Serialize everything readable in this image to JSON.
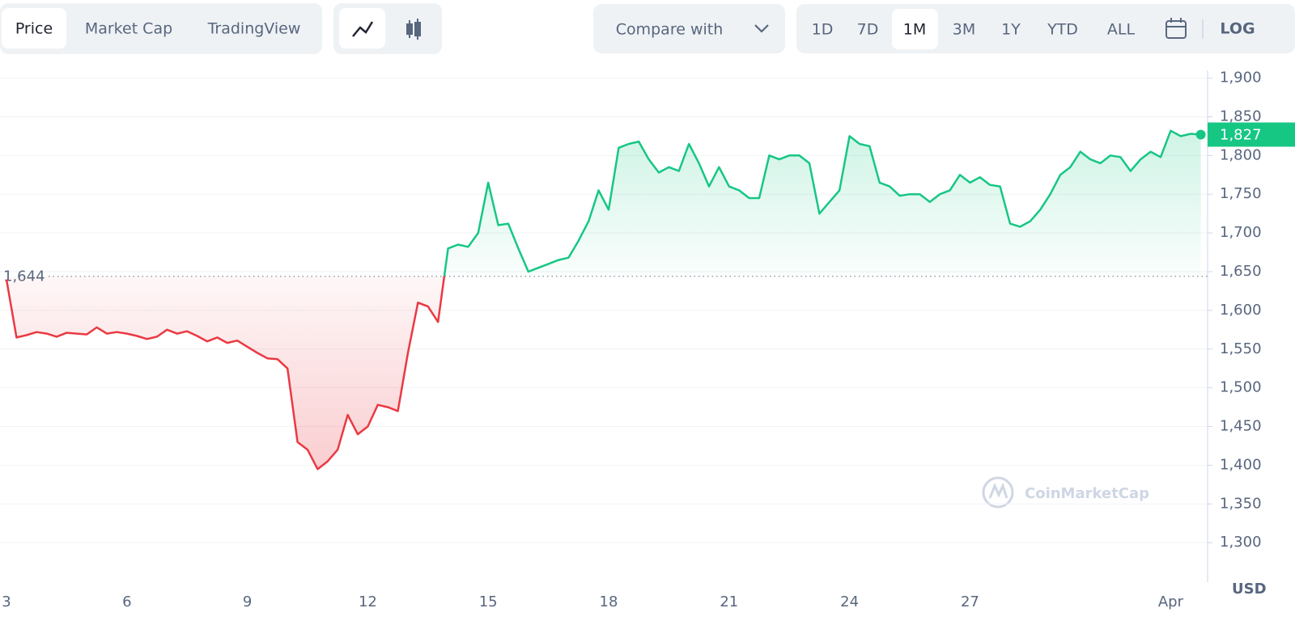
{
  "toolbar": {
    "tabs": [
      "Price",
      "Market Cap",
      "TradingView"
    ],
    "compare": "Compare with",
    "ranges": [
      "1D",
      "7D",
      "1M",
      "3M",
      "1Y",
      "YTD",
      "ALL"
    ],
    "log": "LOG"
  },
  "chart_data": {
    "type": "line",
    "unit": "USD",
    "watermark": "CoinMarketCap",
    "categories": [
      "3",
      null,
      null,
      null,
      null,
      null,
      null,
      null,
      null,
      null,
      null,
      null,
      "6",
      null,
      null,
      null,
      null,
      null,
      null,
      null,
      null,
      null,
      null,
      null,
      "9",
      null,
      null,
      null,
      null,
      null,
      null,
      null,
      null,
      null,
      null,
      null,
      "12",
      null,
      null,
      null,
      null,
      null,
      null,
      null,
      null,
      null,
      null,
      null,
      "15",
      null,
      null,
      null,
      null,
      null,
      null,
      null,
      null,
      null,
      null,
      null,
      "18",
      null,
      null,
      null,
      null,
      null,
      null,
      null,
      null,
      null,
      null,
      null,
      "21",
      null,
      null,
      null,
      null,
      null,
      null,
      null,
      null,
      null,
      null,
      null,
      "24",
      null,
      null,
      null,
      null,
      null,
      null,
      null,
      null,
      null,
      null,
      null,
      "27",
      null,
      null,
      null,
      null,
      null,
      null,
      null,
      null,
      null,
      null,
      null,
      null,
      null,
      null,
      null,
      null,
      null,
      null,
      null,
      "Apr",
      null,
      null,
      null
    ],
    "series": [
      {
        "name": "Price",
        "color": "#16c784",
        "color_below": "#ea3943",
        "values": [
          1640,
          1565,
          1568,
          1572,
          1570,
          1566,
          1571,
          1570,
          1569,
          1578,
          1570,
          1572,
          1570,
          1567,
          1563,
          1566,
          1575,
          1570,
          1573,
          1567,
          1560,
          1565,
          1558,
          1561,
          1553,
          1545,
          1538,
          1537,
          1525,
          1430,
          1420,
          1395,
          1405,
          1420,
          1465,
          1440,
          1450,
          1478,
          1475,
          1470,
          1545,
          1610,
          1605,
          1585,
          1680,
          1685,
          1682,
          1700,
          1765,
          1710,
          1712,
          1680,
          1650,
          1655,
          1660,
          1665,
          1668,
          1690,
          1715,
          1755,
          1730,
          1810,
          1815,
          1818,
          1795,
          1778,
          1785,
          1780,
          1815,
          1790,
          1760,
          1785,
          1760,
          1755,
          1745,
          1745,
          1800,
          1795,
          1800,
          1800,
          1790,
          1725,
          1740,
          1755,
          1825,
          1815,
          1812,
          1765,
          1760,
          1748,
          1750,
          1750,
          1740,
          1750,
          1755,
          1775,
          1765,
          1772,
          1762,
          1760,
          1712,
          1708,
          1715,
          1730,
          1750,
          1775,
          1785,
          1805,
          1795,
          1790,
          1800,
          1798,
          1780,
          1795,
          1805,
          1798,
          1832,
          1825,
          1828,
          1827
        ]
      }
    ],
    "baseline": {
      "value": 1644,
      "label": "1,644"
    },
    "current": {
      "value": 1827,
      "label": "1,827"
    },
    "ylim": [
      1249,
      1910
    ],
    "yticks": [
      {
        "value": 1300,
        "label": "1,300"
      },
      {
        "value": 1350,
        "label": "1,350"
      },
      {
        "value": 1400,
        "label": "1,400"
      },
      {
        "value": 1450,
        "label": "1,450"
      },
      {
        "value": 1500,
        "label": "1,500"
      },
      {
        "value": 1550,
        "label": "1,550"
      },
      {
        "value": 1600,
        "label": "1,600"
      },
      {
        "value": 1650,
        "label": "1,650"
      },
      {
        "value": 1700,
        "label": "1,700"
      },
      {
        "value": 1750,
        "label": "1,750"
      },
      {
        "value": 1800,
        "label": "1,800"
      },
      {
        "value": 1850,
        "label": "1,850"
      },
      {
        "value": 1900,
        "label": "1,900"
      }
    ],
    "grid": true
  }
}
